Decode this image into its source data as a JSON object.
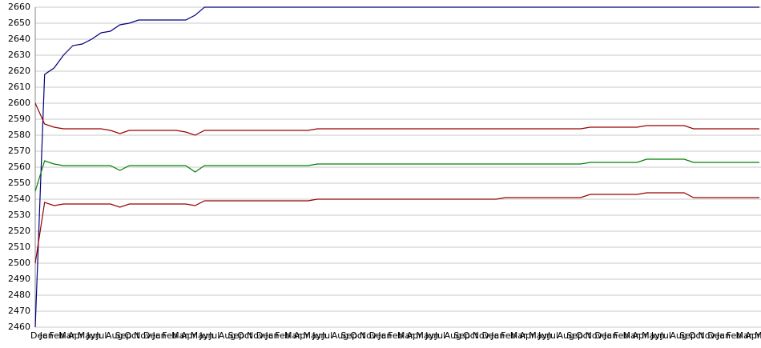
{
  "chart_data": {
    "type": "line",
    "categories": [
      "Dec",
      "Jan",
      "Feb",
      "Mar",
      "Apr",
      "May",
      "Jun",
      "Jul",
      "Aug",
      "Sep",
      "Oct",
      "Nov",
      "Dec",
      "Jan",
      "Feb",
      "Mar",
      "Apr",
      "May",
      "Jun",
      "Jul",
      "Aug",
      "Sep",
      "Oct",
      "Nov",
      "Dec",
      "Jan",
      "Feb",
      "Mar",
      "Apr",
      "May",
      "Jun",
      "Jul",
      "Aug",
      "Sep",
      "Oct",
      "Nov",
      "Dec",
      "Jan",
      "Feb",
      "Mar",
      "Apr",
      "May",
      "Jun",
      "Jul",
      "Aug",
      "Sep",
      "Oct",
      "Nov",
      "Dec",
      "Jan",
      "Feb",
      "Mar",
      "Apr",
      "May",
      "Jun",
      "Jul",
      "Aug",
      "Sep",
      "Oct",
      "Nov",
      "Dec",
      "Jan",
      "Feb",
      "Mar",
      "Apr",
      "May",
      "Jun",
      "Jul",
      "Aug",
      "Sep",
      "Oct",
      "Nov",
      "Dec",
      "Jan",
      "Feb",
      "Mar",
      "Apr",
      "May"
    ],
    "series": [
      {
        "color": "#000080",
        "values": [
          2460,
          2618,
          2622,
          2630,
          2636,
          2637,
          2640,
          2644,
          2645,
          2649,
          2650,
          2652,
          2652,
          2652,
          2652,
          2652,
          2652,
          2655,
          2660,
          2660,
          2660,
          2660,
          2660,
          2660,
          2660,
          2660,
          2660,
          2660,
          2660,
          2660,
          2660,
          2660,
          2660,
          2660,
          2660,
          2660,
          2660,
          2660,
          2660,
          2660,
          2660,
          2660,
          2660,
          2660,
          2660,
          2660,
          2660,
          2660,
          2660,
          2660,
          2660,
          2660,
          2660,
          2660,
          2660,
          2660,
          2660,
          2660,
          2660,
          2660,
          2660,
          2660,
          2660,
          2660,
          2660,
          2660,
          2660,
          2660,
          2660,
          2660,
          2660,
          2660,
          2660,
          2660,
          2660,
          2660,
          2660,
          2660
        ]
      },
      {
        "color": "#990000",
        "values": [
          2600,
          2587,
          2585,
          2584,
          2584,
          2584,
          2584,
          2584,
          2583,
          2581,
          2583,
          2583,
          2583,
          2583,
          2583,
          2583,
          2582,
          2580,
          2583,
          2583,
          2583,
          2583,
          2583,
          2583,
          2583,
          2583,
          2583,
          2583,
          2583,
          2583,
          2584,
          2584,
          2584,
          2584,
          2584,
          2584,
          2584,
          2584,
          2584,
          2584,
          2584,
          2584,
          2584,
          2584,
          2584,
          2584,
          2584,
          2584,
          2584,
          2584,
          2584,
          2584,
          2584,
          2584,
          2584,
          2584,
          2584,
          2584,
          2584,
          2585,
          2585,
          2585,
          2585,
          2585,
          2585,
          2586,
          2586,
          2586,
          2586,
          2586,
          2584,
          2584,
          2584,
          2584,
          2584,
          2584,
          2584,
          2584
        ]
      },
      {
        "color": "#008000",
        "values": [
          2545,
          2564,
          2562,
          2561,
          2561,
          2561,
          2561,
          2561,
          2561,
          2558,
          2561,
          2561,
          2561,
          2561,
          2561,
          2561,
          2561,
          2557,
          2561,
          2561,
          2561,
          2561,
          2561,
          2561,
          2561,
          2561,
          2561,
          2561,
          2561,
          2561,
          2562,
          2562,
          2562,
          2562,
          2562,
          2562,
          2562,
          2562,
          2562,
          2562,
          2562,
          2562,
          2562,
          2562,
          2562,
          2562,
          2562,
          2562,
          2562,
          2562,
          2562,
          2562,
          2562,
          2562,
          2562,
          2562,
          2562,
          2562,
          2562,
          2563,
          2563,
          2563,
          2563,
          2563,
          2563,
          2565,
          2565,
          2565,
          2565,
          2565,
          2563,
          2563,
          2563,
          2563,
          2563,
          2563,
          2563,
          2563
        ]
      },
      {
        "color": "#990000",
        "values": [
          2500,
          2538,
          2536,
          2537,
          2537,
          2537,
          2537,
          2537,
          2537,
          2535,
          2537,
          2537,
          2537,
          2537,
          2537,
          2537,
          2537,
          2536,
          2539,
          2539,
          2539,
          2539,
          2539,
          2539,
          2539,
          2539,
          2539,
          2539,
          2539,
          2539,
          2540,
          2540,
          2540,
          2540,
          2540,
          2540,
          2540,
          2540,
          2540,
          2540,
          2540,
          2540,
          2540,
          2540,
          2540,
          2540,
          2540,
          2540,
          2540,
          2540,
          2541,
          2541,
          2541,
          2541,
          2541,
          2541,
          2541,
          2541,
          2541,
          2543,
          2543,
          2543,
          2543,
          2543,
          2543,
          2544,
          2544,
          2544,
          2544,
          2544,
          2541,
          2541,
          2541,
          2541,
          2541,
          2541,
          2541,
          2541
        ]
      }
    ],
    "ylim": [
      2460,
      2660
    ],
    "yticks": [
      2460,
      2470,
      2480,
      2490,
      2500,
      2510,
      2520,
      2530,
      2540,
      2550,
      2560,
      2570,
      2580,
      2590,
      2600,
      2610,
      2620,
      2630,
      2640,
      2650,
      2660
    ],
    "grid": true
  }
}
